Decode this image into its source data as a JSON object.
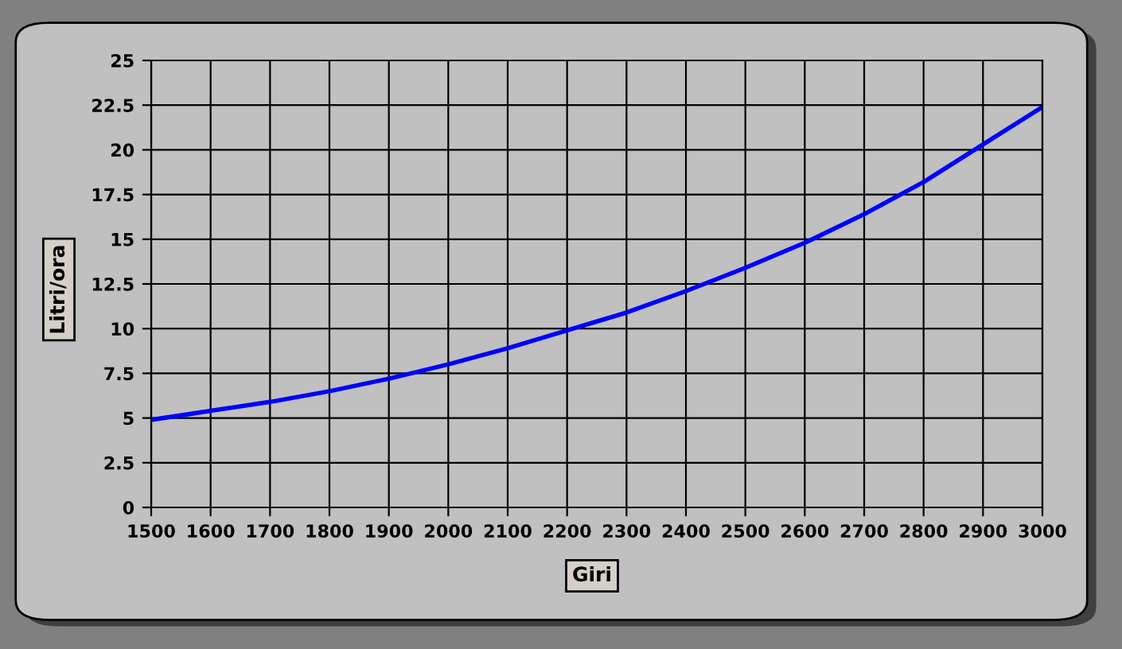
{
  "chart_data": {
    "type": "line",
    "xlabel": "Giri",
    "ylabel": "Litri/ora",
    "x": [
      1500,
      1600,
      1700,
      1800,
      1900,
      2000,
      2100,
      2200,
      2300,
      2400,
      2500,
      2600,
      2700,
      2800,
      2900,
      3000
    ],
    "series": [
      {
        "color": "#0000ff",
        "values": [
          4.9,
          5.4,
          5.9,
          6.5,
          7.2,
          8.0,
          8.9,
          9.9,
          10.9,
          12.1,
          13.4,
          14.8,
          16.4,
          18.2,
          20.3,
          22.4
        ]
      }
    ],
    "xlim": [
      1500,
      3000
    ],
    "xticks": [
      1500,
      1600,
      1700,
      1800,
      1900,
      2000,
      2100,
      2200,
      2300,
      2400,
      2500,
      2600,
      2700,
      2800,
      2900,
      3000
    ],
    "ylim": [
      0,
      25
    ],
    "yticks": [
      0,
      2.5,
      5,
      7.5,
      10,
      12.5,
      15,
      17.5,
      20,
      22.5,
      25
    ],
    "grid": true,
    "marker": "none",
    "line_style": "solid"
  }
}
